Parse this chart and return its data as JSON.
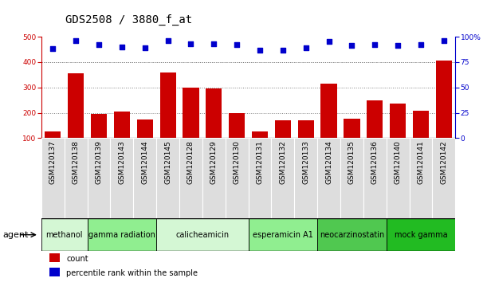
{
  "title": "GDS2508 / 3880_f_at",
  "categories": [
    "GSM120137",
    "GSM120138",
    "GSM120139",
    "GSM120143",
    "GSM120144",
    "GSM120145",
    "GSM120128",
    "GSM120129",
    "GSM120130",
    "GSM120131",
    "GSM120132",
    "GSM120133",
    "GSM120134",
    "GSM120135",
    "GSM120136",
    "GSM120140",
    "GSM120141",
    "GSM120142"
  ],
  "bar_values": [
    125,
    355,
    195,
    205,
    175,
    360,
    300,
    295,
    200,
    125,
    170,
    170,
    315,
    178,
    248,
    235,
    208,
    405
  ],
  "percentile_values": [
    88,
    96,
    92,
    90,
    89,
    96,
    93,
    93,
    92,
    87,
    87,
    89,
    95,
    91,
    92,
    91,
    92,
    96
  ],
  "bar_color": "#cc0000",
  "percentile_color": "#0000cc",
  "ylim_left": [
    100,
    500
  ],
  "ylim_right": [
    0,
    100
  ],
  "right_ticks": [
    0,
    25,
    50,
    75,
    100
  ],
  "right_tick_labels": [
    "0",
    "25",
    "50",
    "75",
    "100%"
  ],
  "left_ticks": [
    100,
    200,
    300,
    400,
    500
  ],
  "grid_lines": [
    200,
    300,
    400
  ],
  "agent_groups": [
    {
      "label": "methanol",
      "start": 0,
      "end": 2,
      "color": "#d4f7d4"
    },
    {
      "label": "gamma radiation",
      "start": 2,
      "end": 5,
      "color": "#90ee90"
    },
    {
      "label": "calicheamicin",
      "start": 5,
      "end": 9,
      "color": "#d4f7d4"
    },
    {
      "label": "esperamicin A1",
      "start": 9,
      "end": 12,
      "color": "#90ee90"
    },
    {
      "label": "neocarzinostatin",
      "start": 12,
      "end": 15,
      "color": "#50c850"
    },
    {
      "label": "mock gamma",
      "start": 15,
      "end": 18,
      "color": "#22bb22"
    }
  ],
  "legend_count_label": "count",
  "legend_pct_label": "percentile rank within the sample",
  "agent_label": "agent",
  "bg_col_color": "#dddddd",
  "title_fontsize": 10,
  "tick_fontsize": 6.5,
  "group_label_fontsize": 7,
  "legend_fontsize": 7
}
